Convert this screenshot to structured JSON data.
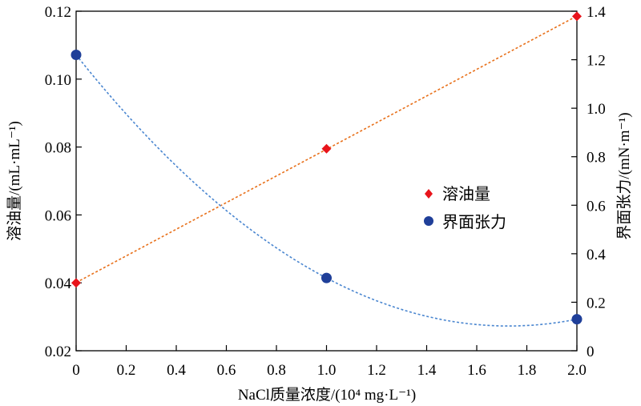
{
  "chart_data": {
    "type": "scatter",
    "xlabel": "NaCl质量浓度/(10⁴ mg·L⁻¹)",
    "ylabel_left": "溶油量/(mL·mL⁻¹)",
    "ylabel_right": "界面张力/(mN·m⁻¹)",
    "xlim": [
      0,
      2.0
    ],
    "ylim_left": [
      0.02,
      0.12
    ],
    "ylim_right": [
      0,
      1.4
    ],
    "x_ticks": [
      "0",
      "0.2",
      "0.4",
      "0.6",
      "0.8",
      "1.0",
      "1.2",
      "1.4",
      "1.6",
      "1.8",
      "2.0"
    ],
    "y_left_ticks": [
      "0.02",
      "0.04",
      "0.06",
      "0.08",
      "0.10",
      "0.12"
    ],
    "y_right_ticks": [
      "0",
      "0.2",
      "0.4",
      "0.6",
      "0.8",
      "1.0",
      "1.2",
      "1.4"
    ],
    "grid": false,
    "legend_position": "center-right",
    "series": [
      {
        "name": "溶油量",
        "axis": "left",
        "marker": "diamond",
        "color": "#e8141b",
        "fit_line_color": "#e8701a",
        "fit": "linear",
        "x": [
          0,
          1.0,
          2.0
        ],
        "y": [
          0.04,
          0.0795,
          0.1185
        ]
      },
      {
        "name": "界面张力",
        "axis": "right",
        "marker": "circle",
        "color": "#1f3f99",
        "fit_line_color": "#4a86d0",
        "fit": "quadratic",
        "x": [
          0,
          1.0,
          2.0
        ],
        "y": [
          1.22,
          0.3,
          0.13
        ]
      }
    ]
  }
}
